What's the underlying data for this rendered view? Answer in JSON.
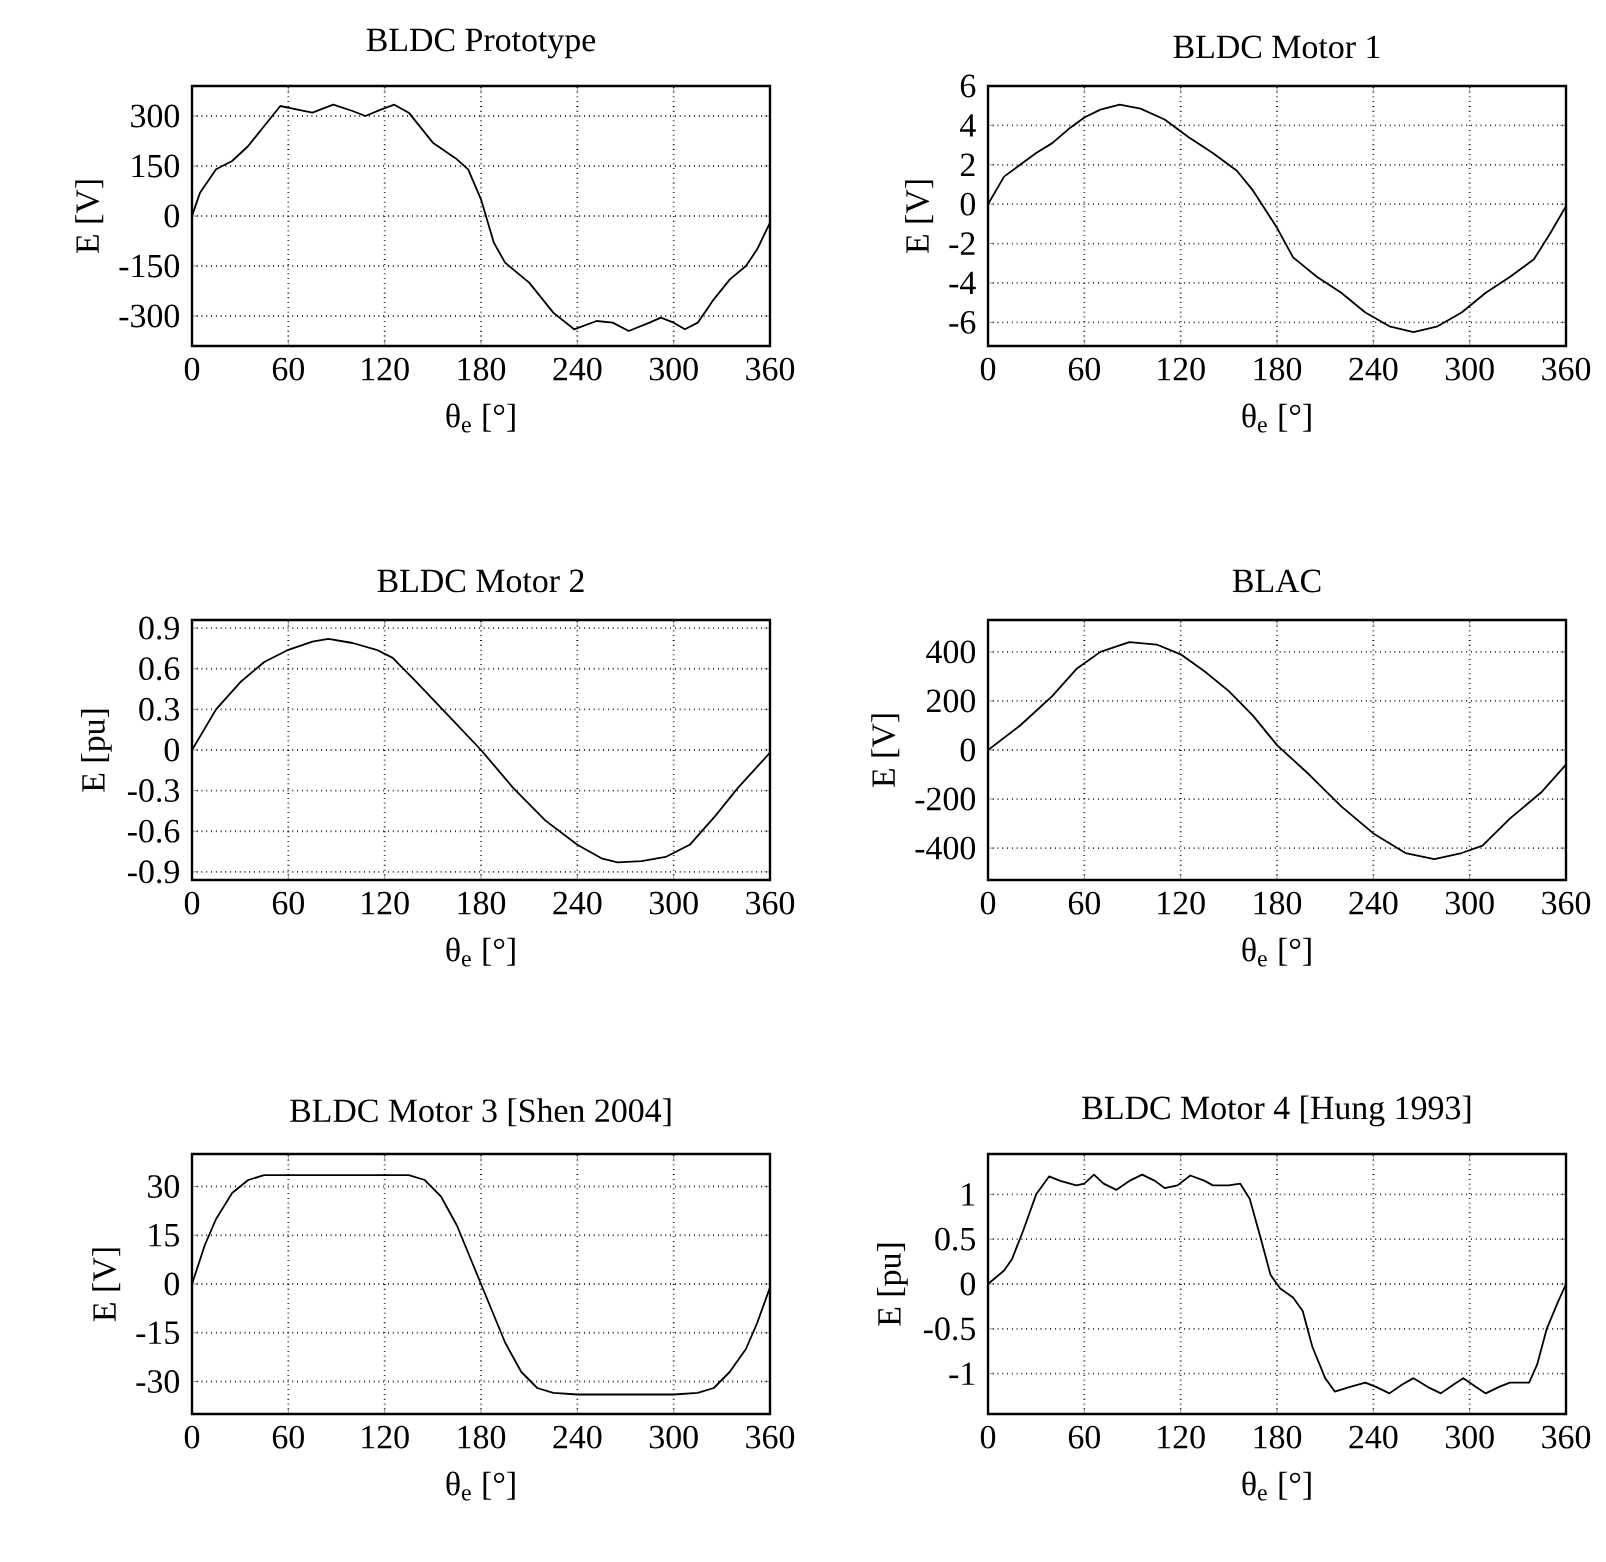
{
  "chart_data": [
    {
      "type": "line",
      "title": "BLDC Prototype",
      "xlabel": "θ$_{e}$ [°]",
      "ylabel": "E [V]",
      "xlim": [
        0,
        360
      ],
      "xticks": [
        0,
        60,
        120,
        180,
        240,
        300,
        360
      ],
      "ylim": [
        -390,
        390
      ],
      "yticks": [
        -300,
        -150,
        0,
        150,
        300
      ],
      "grid": true,
      "series": [
        {
          "color": "#000000",
          "x": [
            0,
            5,
            15,
            25,
            35,
            45,
            55,
            65,
            75,
            88,
            100,
            108,
            118,
            126,
            135,
            150,
            165,
            172,
            180,
            188,
            195,
            210,
            225,
            238,
            252,
            262,
            272,
            285,
            292,
            300,
            307,
            315,
            325,
            335,
            345,
            352,
            360
          ],
          "values": [
            0,
            70,
            140,
            165,
            210,
            270,
            330,
            320,
            310,
            334,
            315,
            300,
            320,
            334,
            310,
            220,
            170,
            140,
            50,
            -80,
            -140,
            -200,
            -290,
            -340,
            -315,
            -320,
            -345,
            -320,
            -305,
            -320,
            -340,
            -320,
            -250,
            -190,
            -150,
            -100,
            -20
          ]
        }
      ]
    },
    {
      "type": "line",
      "title": "BLDC Motor 1",
      "xlabel": "θ$_{e}$ [°]",
      "ylabel": "E [V]",
      "xlim": [
        0,
        360
      ],
      "xticks": [
        0,
        60,
        120,
        180,
        240,
        300,
        360
      ],
      "ylim": [
        -7.2,
        6
      ],
      "yticks": [
        -6,
        -4,
        -2,
        0,
        2,
        4,
        6
      ],
      "grid": true,
      "series": [
        {
          "color": "#000000",
          "x": [
            0,
            10,
            20,
            30,
            40,
            50,
            60,
            70,
            82,
            95,
            110,
            125,
            140,
            155,
            165,
            180,
            190,
            205,
            220,
            235,
            250,
            265,
            280,
            295,
            310,
            325,
            340,
            350,
            360
          ],
          "values": [
            0,
            1.4,
            2.0,
            2.6,
            3.1,
            3.8,
            4.4,
            4.8,
            5.05,
            4.85,
            4.3,
            3.4,
            2.6,
            1.7,
            0.7,
            -1.2,
            -2.7,
            -3.7,
            -4.5,
            -5.5,
            -6.2,
            -6.5,
            -6.2,
            -5.5,
            -4.5,
            -3.7,
            -2.8,
            -1.5,
            -0.1
          ]
        }
      ]
    },
    {
      "type": "line",
      "title": "BLDC Motor 2",
      "xlabel": "θ$_{e}$ [°]",
      "ylabel": "E [pu]",
      "xlim": [
        0,
        360
      ],
      "xticks": [
        0,
        60,
        120,
        180,
        240,
        300,
        360
      ],
      "ylim": [
        -0.96,
        0.96
      ],
      "yticks": [
        -0.9,
        -0.6,
        -0.3,
        0,
        0.3,
        0.6,
        0.9
      ],
      "grid": true,
      "series": [
        {
          "color": "#000000",
          "x": [
            0,
            15,
            30,
            45,
            60,
            75,
            85,
            100,
            115,
            125,
            140,
            160,
            180,
            200,
            220,
            240,
            255,
            265,
            280,
            295,
            310,
            325,
            340,
            360
          ],
          "values": [
            0,
            0.3,
            0.5,
            0.65,
            0.74,
            0.8,
            0.82,
            0.79,
            0.74,
            0.68,
            0.5,
            0.25,
            0,
            -0.28,
            -0.52,
            -0.7,
            -0.8,
            -0.83,
            -0.82,
            -0.79,
            -0.7,
            -0.5,
            -0.28,
            -0.02
          ]
        }
      ]
    },
    {
      "type": "line",
      "title": "BLAC",
      "xlabel": "θ$_{e}$ [°]",
      "ylabel": "E [V]",
      "xlim": [
        0,
        360
      ],
      "xticks": [
        0,
        60,
        120,
        180,
        240,
        300,
        360
      ],
      "ylim": [
        -530,
        530
      ],
      "yticks": [
        -400,
        -200,
        0,
        200,
        400
      ],
      "grid": true,
      "series": [
        {
          "color": "#000000",
          "x": [
            0,
            20,
            40,
            55,
            70,
            88,
            105,
            120,
            135,
            150,
            165,
            180,
            200,
            220,
            240,
            260,
            278,
            295,
            308,
            325,
            345,
            360
          ],
          "values": [
            0,
            100,
            220,
            330,
            400,
            440,
            430,
            390,
            320,
            240,
            140,
            20,
            -100,
            -230,
            -340,
            -420,
            -445,
            -420,
            -390,
            -280,
            -170,
            -60
          ]
        }
      ]
    },
    {
      "type": "line",
      "title": "BLDC Motor 3 [Shen 2004]",
      "xlabel": "θ$_{e}$ [°]",
      "ylabel": "E [V]",
      "xlim": [
        0,
        360
      ],
      "xticks": [
        0,
        60,
        120,
        180,
        240,
        300,
        360
      ],
      "ylim": [
        -40,
        40
      ],
      "yticks": [
        -30,
        -15,
        0,
        15,
        30
      ],
      "grid": true,
      "series": [
        {
          "color": "#000000",
          "x": [
            0,
            8,
            15,
            25,
            35,
            45,
            60,
            100,
            135,
            145,
            155,
            165,
            175,
            180,
            185,
            195,
            205,
            215,
            225,
            240,
            300,
            315,
            325,
            335,
            345,
            352,
            360
          ],
          "values": [
            0,
            12,
            20,
            28,
            32,
            33.5,
            33.5,
            33.5,
            33.5,
            32,
            27,
            18,
            6,
            0,
            -6,
            -18,
            -27,
            -32,
            -33.5,
            -34,
            -34,
            -33.5,
            -32,
            -27,
            -20,
            -12,
            -1
          ]
        }
      ]
    },
    {
      "type": "line",
      "title": "BLDC Motor 4 [Hung 1993]",
      "xlabel": "θ$_{e}$ [°]",
      "ylabel": "E [pu]",
      "xlim": [
        0,
        360
      ],
      "xticks": [
        0,
        60,
        120,
        180,
        240,
        300,
        360
      ],
      "ylim": [
        -1.45,
        1.45
      ],
      "yticks": [
        -1,
        -0.5,
        0,
        0.5,
        1
      ],
      "grid": true,
      "series": [
        {
          "color": "#000000",
          "x": [
            0,
            10,
            15,
            22,
            30,
            38,
            45,
            55,
            60,
            66,
            72,
            80,
            88,
            96,
            104,
            110,
            118,
            126,
            135,
            140,
            150,
            157,
            163,
            170,
            176,
            182,
            190,
            196,
            202,
            210,
            216,
            225,
            235,
            242,
            250,
            258,
            265,
            274,
            282,
            290,
            296,
            304,
            310,
            318,
            325,
            337,
            342,
            348,
            355,
            360
          ],
          "values": [
            0,
            0.15,
            0.28,
            0.6,
            1.0,
            1.2,
            1.15,
            1.1,
            1.12,
            1.22,
            1.12,
            1.05,
            1.15,
            1.22,
            1.15,
            1.07,
            1.1,
            1.21,
            1.15,
            1.1,
            1.1,
            1.12,
            0.95,
            0.5,
            0.1,
            -0.05,
            -0.15,
            -0.3,
            -0.7,
            -1.05,
            -1.2,
            -1.15,
            -1.1,
            -1.15,
            -1.22,
            -1.12,
            -1.05,
            -1.15,
            -1.22,
            -1.12,
            -1.05,
            -1.15,
            -1.22,
            -1.15,
            -1.1,
            -1.1,
            -0.9,
            -0.5,
            -0.2,
            0
          ]
        }
      ]
    }
  ]
}
